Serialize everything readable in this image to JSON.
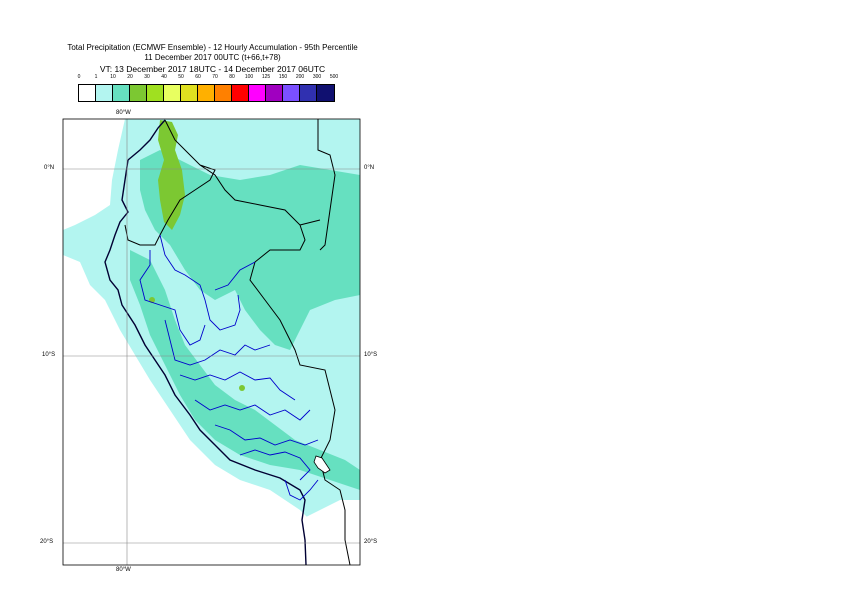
{
  "title": {
    "line1": "Total Precipitation (ECMWF Ensemble) - 12 Hourly Accumulation - 95th Percentile",
    "line2": "11 December 2017 00UTC (t+66,t+78)",
    "line3": "VT: 13 December 2017 18UTC - 14 December 2017 06UTC"
  },
  "legend": {
    "labels": [
      "0",
      "1",
      "10",
      "20",
      "30",
      "40",
      "50",
      "60",
      "70",
      "80",
      "100",
      "125",
      "150",
      "200",
      "300",
      "500"
    ],
    "colors": [
      "#ffffff",
      "#b3f5f0",
      "#66e0c0",
      "#7cc832",
      "#a0e020",
      "#e8ff60",
      "#e0e020",
      "#ffb000",
      "#ff8000",
      "#ff0000",
      "#ff00ff",
      "#a000c0",
      "#7b50ff",
      "#3030b0",
      "#101070"
    ]
  },
  "axes": {
    "lon_top": "80°W",
    "lon_bottom": "80°W",
    "lat_left": [
      "0°N",
      "10°S",
      "20°S"
    ],
    "lat_right": [
      "0°N",
      "10°S",
      "20°S"
    ]
  },
  "map_colors": {
    "ocean": "#b3f5f0",
    "land_light": "#b3f5f0",
    "land_heavy": "#66e0c0",
    "peak": "#7cc832",
    "coast": "#000033",
    "province": "#0000cc"
  }
}
